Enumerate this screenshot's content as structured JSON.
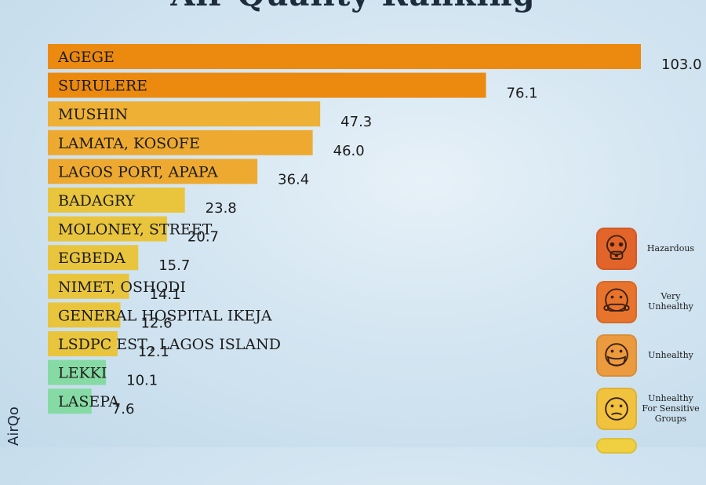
{
  "title": "Air Quality Ranking",
  "brand": "AirQo",
  "chart_data": {
    "type": "bar",
    "orientation": "horizontal",
    "categories": [
      "AGEGE",
      "SURULERE",
      "MUSHIN",
      "LAMATA, KOSOFE",
      "LAGOS PORT, APAPA",
      "BADAGRY",
      "MOLONEY, STREET",
      "EGBEDA",
      "NIMET, OSHODI",
      "GENERAL HOSPITAL IKEJA",
      "LSDPC EST., LAGOS ISLAND",
      "LEKKI",
      "LASEPA"
    ],
    "values": [
      103.0,
      76.1,
      47.3,
      46.0,
      36.4,
      23.8,
      20.7,
      15.7,
      14.1,
      12.6,
      12.1,
      10.1,
      7.6
    ],
    "value_labels": [
      "103.0",
      "76.1",
      "47.3",
      "46.0",
      "36.4",
      "23.8",
      "20.7",
      "15.7",
      "14.1",
      "12.6",
      "12.1",
      "10.1",
      "7.6"
    ],
    "bar_colors": [
      "#ec8a10",
      "#ec8a10",
      "#eeb035",
      "#eeaa30",
      "#eeaa30",
      "#e9c53e",
      "#e9c53e",
      "#e9c53e",
      "#e9c53e",
      "#e9c53e",
      "#e9c53e",
      "#86dba4",
      "#86dba4"
    ],
    "xlim": [
      0,
      103
    ],
    "grid": false,
    "legend_position": "right"
  },
  "legend": [
    {
      "label": "Hazardous",
      "color": "#e2642a",
      "icon": "gas-mask-icon"
    },
    {
      "label": "Very Unhealthy",
      "color": "#e8732c",
      "icon": "respirator-face-icon"
    },
    {
      "label": "Unhealthy",
      "color": "#ec9a3e",
      "icon": "masked-face-icon"
    },
    {
      "label": "Unhealthy For Sensitive Groups",
      "color": "#f0c23e",
      "icon": "sad-face-icon"
    }
  ],
  "partial_legend_color": "#f0d040"
}
